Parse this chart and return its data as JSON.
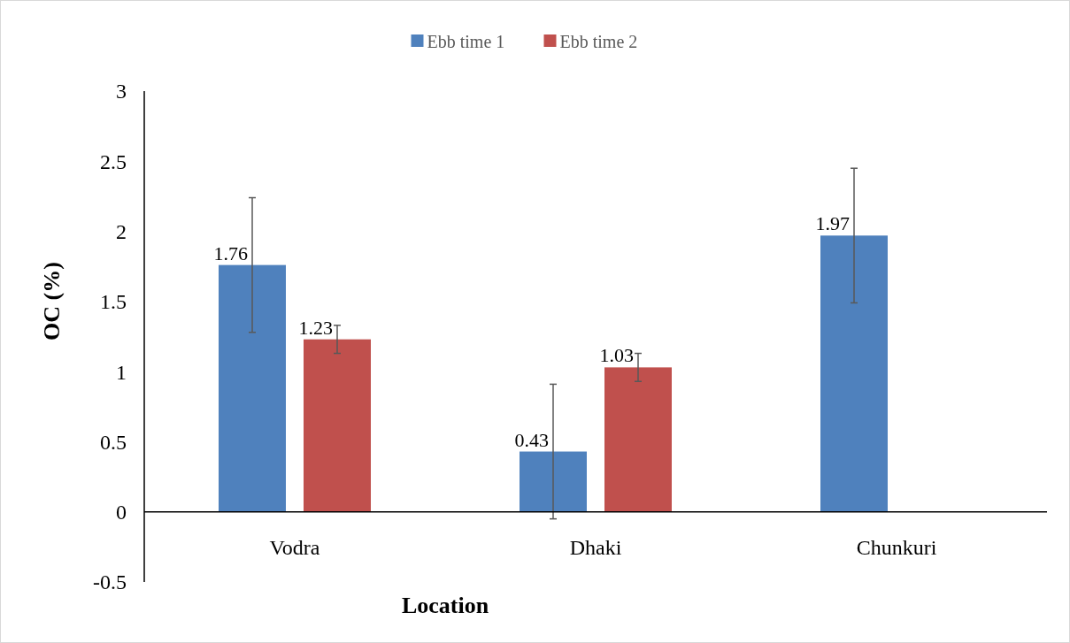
{
  "chart_data": {
    "type": "bar",
    "xlabel": "Location",
    "ylabel": "OC (%)",
    "categories": [
      "Vodra",
      "Dhaki",
      "Chunkuri"
    ],
    "series": [
      {
        "name": "Ebb time 1",
        "color": "#4f81bd",
        "values": [
          1.76,
          0.43,
          1.97
        ],
        "errors": [
          0.48,
          0.48,
          0.48
        ]
      },
      {
        "name": "Ebb time 2",
        "color": "#c0504d",
        "values": [
          1.23,
          1.03,
          null
        ],
        "errors": [
          0.1,
          0.1,
          null
        ]
      }
    ],
    "ylim": [
      -0.5,
      3
    ],
    "yticks": [
      -0.5,
      0,
      0.5,
      1,
      1.5,
      2,
      2.5,
      3
    ],
    "data_labels": true,
    "grid": false,
    "legend": "top"
  }
}
